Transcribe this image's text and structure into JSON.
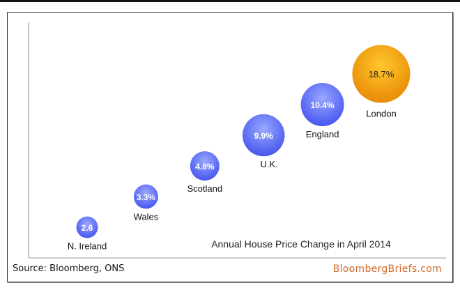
{
  "chart_data": {
    "type": "bubble",
    "title": "Annual House Price Change in April 2014",
    "xlabel": "",
    "ylabel": "",
    "grid": false,
    "points": [
      {
        "name": "N. Ireland",
        "value": 2.6,
        "label": "2.6",
        "color": "blue"
      },
      {
        "name": "Wales",
        "value": 3.3,
        "label": "3.3%",
        "color": "blue"
      },
      {
        "name": "Scotland",
        "value": 4.8,
        "label": "4.8%",
        "color": "blue"
      },
      {
        "name": "U.K.",
        "value": 9.9,
        "label": "9.9%",
        "color": "blue"
      },
      {
        "name": "England",
        "value": 10.4,
        "label": "10.4%",
        "color": "blue"
      },
      {
        "name": "London",
        "value": 18.7,
        "label": "18.7%",
        "color": "orange"
      }
    ]
  },
  "footer": {
    "source": "Source: Bloomberg, ONS",
    "brand": "BloombergBriefs.com"
  },
  "colors": {
    "blue_light": "#9aa8ff",
    "blue_dark": "#4656ee",
    "orange_light": "#ffc72c",
    "orange_dark": "#e98a06",
    "brand": "#d2692a"
  }
}
